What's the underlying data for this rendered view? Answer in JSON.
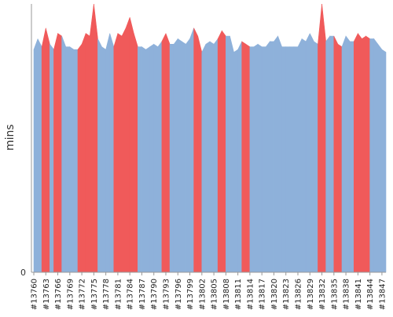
{
  "chart_data": {
    "type": "area",
    "ylabel": "mins",
    "ylim": [
      0,
      100
    ],
    "yticks": [
      0
    ],
    "x": [
      "#13760",
      "#13761",
      "#13762",
      "#13763",
      "#13764",
      "#13765",
      "#13766",
      "#13767",
      "#13768",
      "#13769",
      "#13770",
      "#13771",
      "#13772",
      "#13773",
      "#13774",
      "#13775",
      "#13776",
      "#13777",
      "#13778",
      "#13779",
      "#13780",
      "#13781",
      "#13782",
      "#13783",
      "#13784",
      "#13785",
      "#13786",
      "#13787",
      "#13788",
      "#13789",
      "#13790",
      "#13791",
      "#13792",
      "#13793",
      "#13794",
      "#13795",
      "#13796",
      "#13797",
      "#13798",
      "#13799",
      "#13800",
      "#13801",
      "#13802",
      "#13803",
      "#13804",
      "#13805",
      "#13806",
      "#13807",
      "#13808",
      "#13809",
      "#13810",
      "#13811",
      "#13812",
      "#13813",
      "#13814",
      "#13815",
      "#13816",
      "#13817",
      "#13818",
      "#13819",
      "#13820",
      "#13821",
      "#13822",
      "#13823",
      "#13824",
      "#13825",
      "#13826",
      "#13827",
      "#13828",
      "#13829",
      "#13830",
      "#13831",
      "#13832",
      "#13833",
      "#13834",
      "#13835",
      "#13836",
      "#13837",
      "#13838",
      "#13839",
      "#13840",
      "#13841",
      "#13842",
      "#13843",
      "#13844",
      "#13845",
      "#13846",
      "#13847",
      "#13848"
    ],
    "tick_labels": [
      "#13760",
      "#13763",
      "#13766",
      "#13769",
      "#13772",
      "#13775",
      "#13778",
      "#13781",
      "#13784",
      "#13787",
      "#13790",
      "#13793",
      "#13796",
      "#13799",
      "#13802",
      "#13805",
      "#13808",
      "#13811",
      "#13814",
      "#13817",
      "#13820",
      "#13823",
      "#13826",
      "#13829",
      "#13832",
      "#13835",
      "#13838",
      "#13841",
      "#13844",
      "#13847"
    ],
    "values": [
      83,
      87,
      84,
      91,
      85,
      83,
      89,
      88,
      84,
      84,
      83,
      83,
      85,
      89,
      88,
      100,
      87,
      84,
      83,
      89,
      84,
      89,
      88,
      91,
      95,
      89,
      84,
      84,
      83,
      84,
      85,
      84,
      86,
      89,
      85,
      85,
      87,
      86,
      85,
      87,
      91,
      88,
      82,
      85,
      86,
      85,
      87,
      90,
      88,
      88,
      82,
      83,
      86,
      85,
      84,
      84,
      85,
      84,
      84,
      86,
      86,
      88,
      84,
      84,
      84,
      84,
      84,
      87,
      86,
      89,
      86,
      85,
      100,
      86,
      88,
      88,
      85,
      84,
      88,
      86,
      86,
      89,
      87,
      88,
      87,
      87,
      85,
      83,
      82
    ],
    "failed": [
      false,
      false,
      false,
      true,
      false,
      false,
      true,
      false,
      false,
      false,
      false,
      false,
      true,
      true,
      true,
      true,
      false,
      false,
      false,
      false,
      false,
      true,
      false,
      true,
      true,
      true,
      false,
      false,
      false,
      false,
      false,
      false,
      false,
      true,
      false,
      false,
      false,
      false,
      false,
      false,
      false,
      true,
      false,
      false,
      false,
      false,
      false,
      true,
      false,
      false,
      false,
      false,
      false,
      true,
      false,
      false,
      false,
      false,
      false,
      false,
      false,
      false,
      false,
      false,
      false,
      false,
      false,
      false,
      false,
      false,
      false,
      false,
      true,
      false,
      false,
      false,
      true,
      false,
      false,
      false,
      false,
      true,
      false,
      true,
      false,
      false,
      false,
      false,
      false
    ],
    "colors": {
      "ok": "#8eb1da",
      "failed": "#f05a5a",
      "axis": "#999999"
    }
  }
}
